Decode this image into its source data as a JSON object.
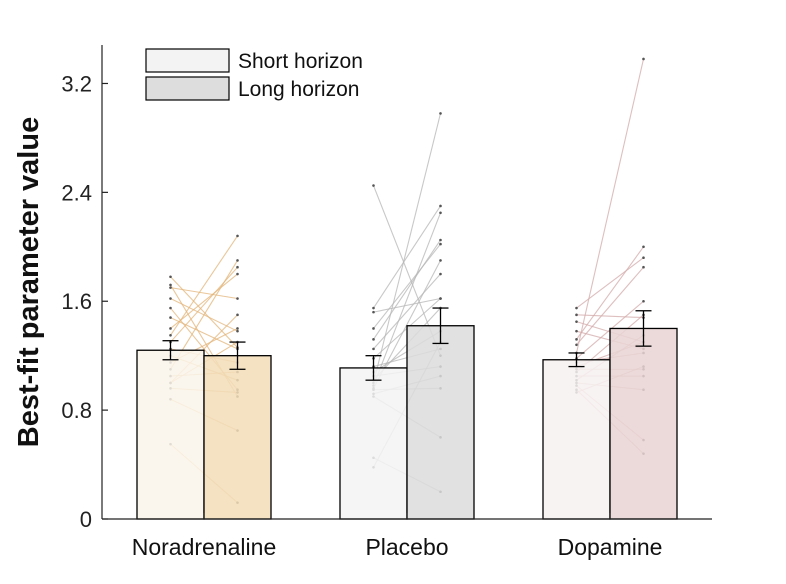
{
  "chart_data": {
    "type": "bar",
    "categories": [
      "Noradrenaline",
      "Placebo",
      "Dopamine"
    ],
    "ylabel": "Best-fit parameter value",
    "xlabel": "",
    "ylim": [
      0,
      3.5
    ],
    "yticks": [
      0,
      0.8,
      1.6,
      2.4,
      3.2
    ],
    "ytick_labels": [
      "0",
      "0.8",
      "1.6",
      "2.4",
      "3.2"
    ],
    "grid": false,
    "legend_position": "top-left",
    "series": [
      {
        "name": "Short horizon",
        "values": [
          1.24,
          1.11,
          1.17
        ],
        "errors": [
          0.07,
          0.09,
          0.05
        ]
      },
      {
        "name": "Long horizon",
        "values": [
          1.2,
          1.42,
          1.4
        ],
        "errors": [
          0.1,
          0.13,
          0.13
        ]
      }
    ],
    "colors": {
      "short": [
        "#faf4ea",
        "#f3f3f3",
        "#f7f1f1"
      ],
      "long": [
        "#f2ddb8",
        "#dcdcdc",
        "#e9d3d3"
      ],
      "individual_lines": [
        "#e3b478",
        "#b5b5b5",
        "#d3aaaa"
      ],
      "legend_short": "#f3f3f3",
      "legend_long": "#dddddd"
    },
    "individual_pairs": [
      [
        [
          1.78,
          1.26
        ],
        [
          1.72,
          0.9
        ],
        [
          1.7,
          1.62
        ],
        [
          1.62,
          1.38
        ],
        [
          1.55,
          0.95
        ],
        [
          1.48,
          1.25
        ],
        [
          1.4,
          1.8
        ],
        [
          1.35,
          2.08
        ],
        [
          1.3,
          1.85
        ],
        [
          1.25,
          1.15
        ],
        [
          1.2,
          1.02
        ],
        [
          1.15,
          1.4
        ],
        [
          1.1,
          1.9
        ],
        [
          1.05,
          1.08
        ],
        [
          1.0,
          1.3
        ],
        [
          1.0,
          1.5
        ],
        [
          0.96,
          0.93
        ],
        [
          0.88,
          0.65
        ],
        [
          0.55,
          0.12
        ]
      ],
      [
        [
          2.45,
          1.2
        ],
        [
          1.55,
          2.3
        ],
        [
          1.52,
          1.62
        ],
        [
          1.4,
          2.02
        ],
        [
          1.32,
          2.05
        ],
        [
          1.25,
          1.8
        ],
        [
          1.18,
          1.62
        ],
        [
          1.12,
          1.25
        ],
        [
          1.08,
          1.38
        ],
        [
          1.05,
          1.12
        ],
        [
          1.02,
          1.55
        ],
        [
          1.0,
          2.98
        ],
        [
          0.98,
          2.25
        ],
        [
          0.96,
          1.9
        ],
        [
          0.95,
          0.96
        ],
        [
          0.92,
          1.05
        ],
        [
          0.9,
          0.6
        ],
        [
          0.45,
          0.2
        ],
        [
          0.38,
          1.3
        ]
      ],
      [
        [
          1.55,
          1.92
        ],
        [
          1.5,
          1.48
        ],
        [
          1.45,
          1.3
        ],
        [
          1.38,
          1.25
        ],
        [
          1.32,
          2.0
        ],
        [
          1.28,
          1.85
        ],
        [
          1.22,
          3.38
        ],
        [
          1.18,
          1.6
        ],
        [
          1.15,
          1.22
        ],
        [
          1.12,
          1.3
        ],
        [
          1.1,
          1.1
        ],
        [
          1.08,
          1.5
        ],
        [
          1.05,
          1.05
        ],
        [
          1.02,
          1.35
        ],
        [
          1.0,
          0.95
        ],
        [
          0.98,
          0.58
        ],
        [
          0.95,
          0.48
        ],
        [
          0.93,
          1.12
        ]
      ]
    ]
  }
}
